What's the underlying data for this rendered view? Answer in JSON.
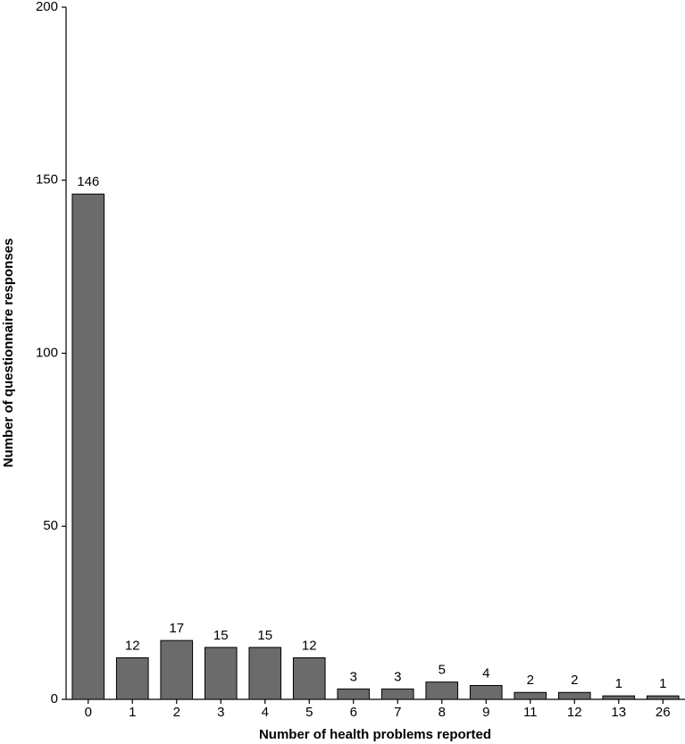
{
  "chart_data": {
    "type": "bar",
    "x_label": "Number of health problems reported",
    "y_label": "Number of questionnaire responses",
    "categories": [
      "0",
      "1",
      "2",
      "3",
      "4",
      "5",
      "6",
      "7",
      "8",
      "9",
      "11",
      "12",
      "13",
      "26"
    ],
    "values": [
      146,
      12,
      17,
      15,
      15,
      12,
      3,
      3,
      5,
      4,
      2,
      2,
      1,
      1
    ],
    "color": "#6b6b6b",
    "ylim": [
      0,
      200
    ],
    "yticks": [
      0,
      50,
      100,
      150,
      200
    ],
    "grid": false
  }
}
